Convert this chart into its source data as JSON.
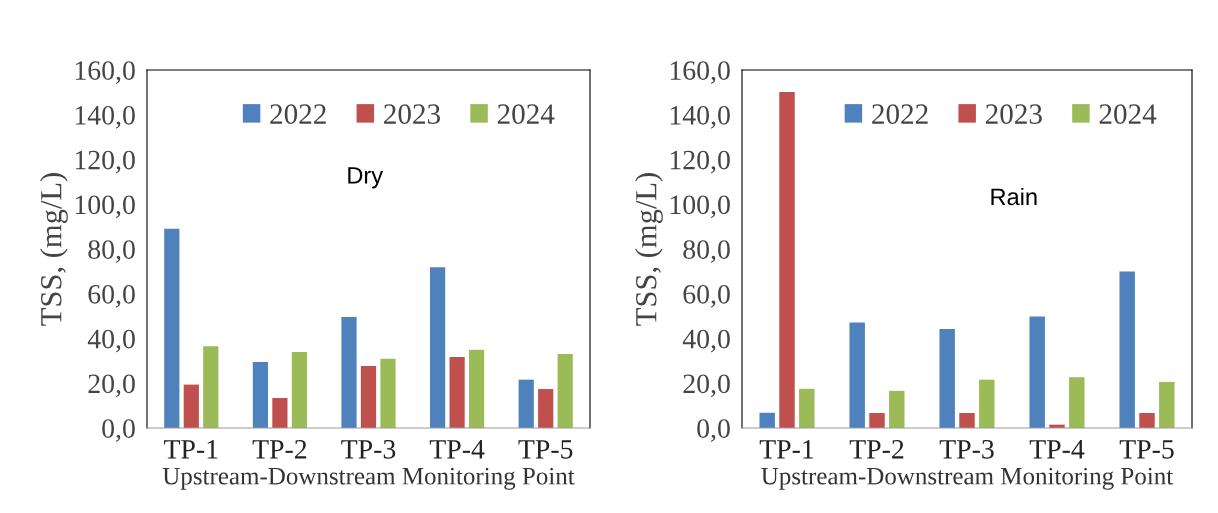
{
  "chart_data": [
    {
      "type": "bar",
      "categories": [
        "TP-1",
        "TP-2",
        "TP-3",
        "TP-4",
        "TP-5"
      ],
      "xlabel": "Upstream-Downstream Monitoring Point",
      "ylabel": "TSS, (mg/L)",
      "annotations": [
        "Dry"
      ],
      "series": [
        {
          "name": "2022",
          "color": "#4f81bd",
          "values": [
            89,
            29.5,
            49.6,
            71.8,
            21.6
          ]
        },
        {
          "name": "2023",
          "color": "#c0504d",
          "values": [
            19.4,
            13.4,
            27.7,
            31.7,
            17.4
          ]
        },
        {
          "name": "2024",
          "color": "#9bbb59",
          "values": [
            36.5,
            34.0,
            31.0,
            35.0,
            33.1
          ]
        }
      ],
      "ylim": [
        0,
        160
      ],
      "yticks": [
        {
          "value": 0,
          "label": "0,0"
        },
        {
          "value": 20,
          "label": "20,0"
        },
        {
          "value": 40,
          "label": "40,0"
        },
        {
          "value": 60,
          "label": "60,0"
        },
        {
          "value": 80,
          "label": "80,0"
        },
        {
          "value": 100,
          "label": "100,0"
        },
        {
          "value": 120,
          "label": "120,0"
        },
        {
          "value": 140,
          "label": "140,0"
        },
        {
          "value": 160,
          "label": "160,0"
        }
      ],
      "legend": "top right",
      "grid": false
    },
    {
      "type": "bar",
      "categories": [
        "TP-1",
        "TP-2",
        "TP-3",
        "TP-4",
        "TP-5"
      ],
      "xlabel": "Upstream-Downstream Monitoring Point",
      "ylabel": "TSS, (mg/L)",
      "annotations": [
        "Rain"
      ],
      "series": [
        {
          "name": "2022",
          "color": "#4f81bd",
          "values": [
            6.8,
            47.2,
            44.3,
            49.8,
            69.9
          ]
        },
        {
          "name": "2023",
          "color": "#c0504d",
          "values": [
            150.2,
            6.7,
            6.7,
            1.5,
            6.7
          ]
        },
        {
          "name": "2024",
          "color": "#9bbb59",
          "values": [
            17.5,
            16.6,
            21.6,
            22.7,
            20.6
          ]
        }
      ],
      "ylim": [
        0,
        160
      ],
      "yticks": [
        {
          "value": 0,
          "label": "0,0"
        },
        {
          "value": 20,
          "label": "20,0"
        },
        {
          "value": 40,
          "label": "40,0"
        },
        {
          "value": 60,
          "label": "60,0"
        },
        {
          "value": 80,
          "label": "80,0"
        },
        {
          "value": 100,
          "label": "100,0"
        },
        {
          "value": 120,
          "label": "120,0"
        },
        {
          "value": 140,
          "label": "140,0"
        },
        {
          "value": 160,
          "label": "160,0"
        }
      ],
      "legend": "top right",
      "grid": false
    }
  ]
}
